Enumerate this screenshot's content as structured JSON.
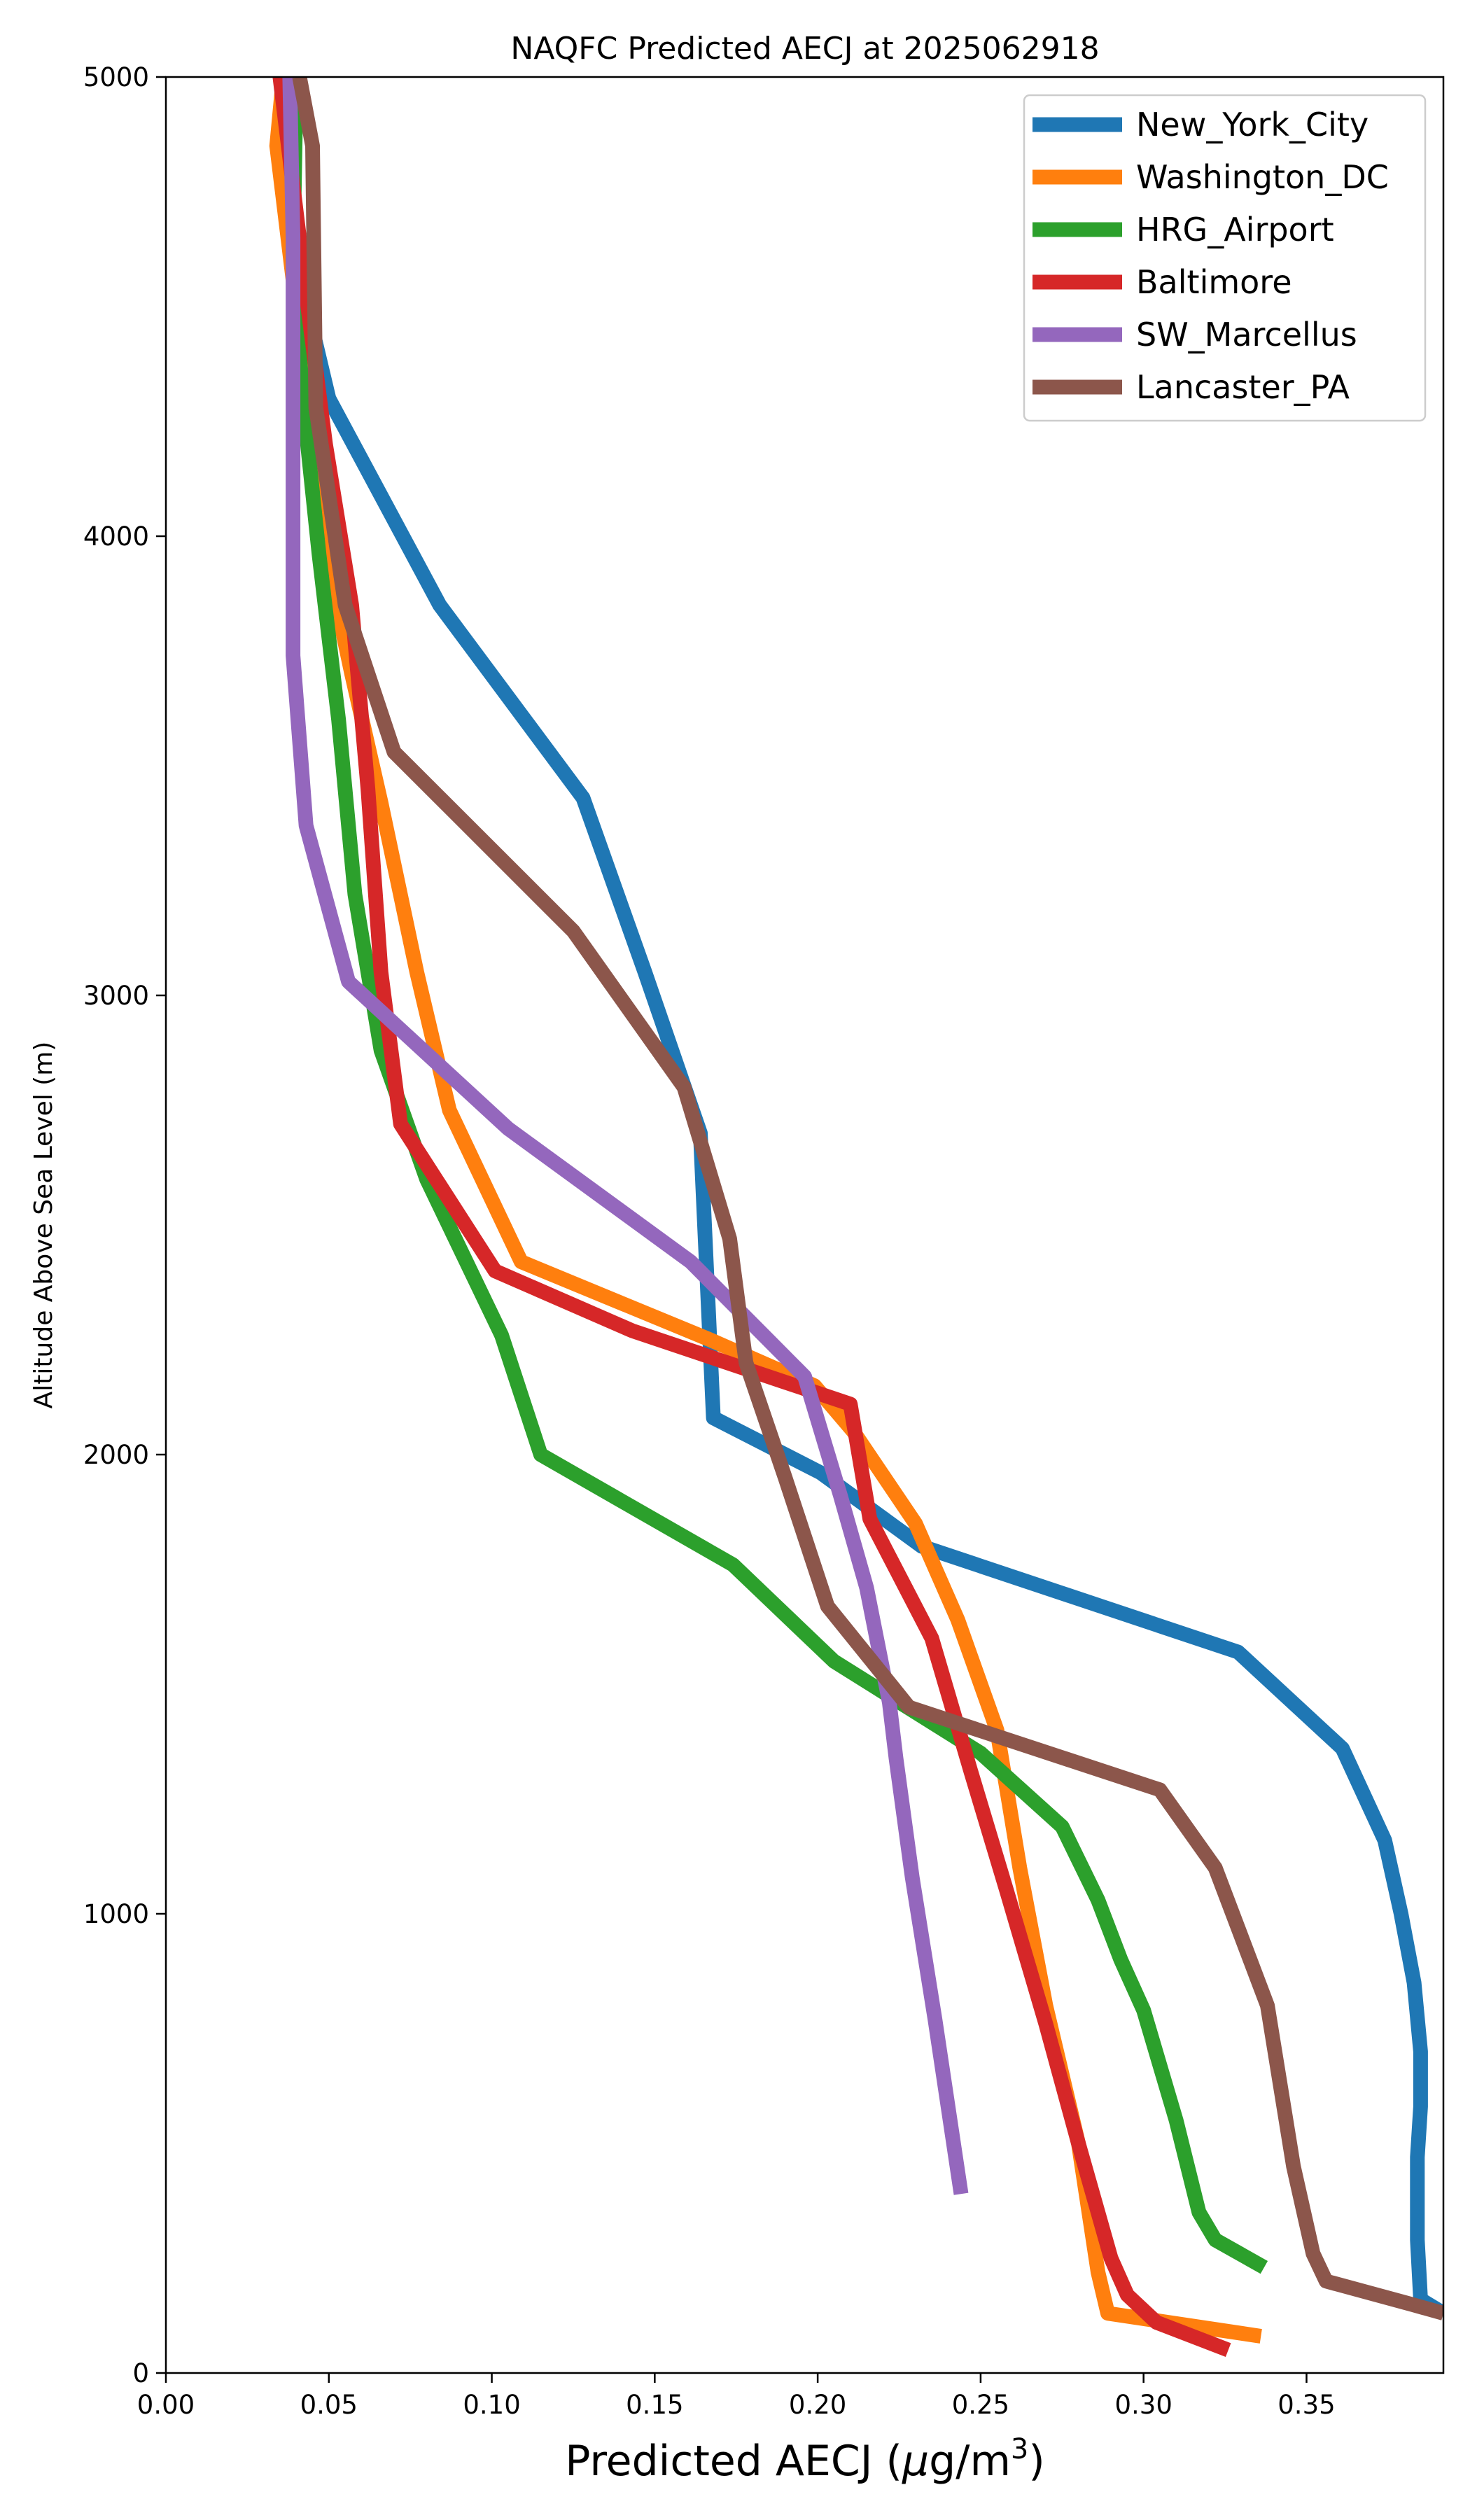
{
  "chart_data": {
    "type": "line",
    "title": "NAQFC Predicted AECJ at 2025062918",
    "xlabel": "Predicted AECJ (μg/m³)",
    "xlabel_parts": {
      "prefix": "Predicted AECJ (",
      "mu": "μ",
      "unit": "g/m",
      "superscript": "3",
      "suffix": ")"
    },
    "ylabel": "Altitude Above Sea Level (m)",
    "xlim": [
      0.0,
      0.392
    ],
    "ylim": [
      0,
      5000
    ],
    "xticks": [
      0.0,
      0.05,
      0.1,
      0.15,
      0.2,
      0.25,
      0.3,
      0.35
    ],
    "xtick_labels": [
      "0.00",
      "0.05",
      "0.10",
      "0.15",
      "0.20",
      "0.25",
      "0.30",
      "0.35"
    ],
    "yticks": [
      0,
      1000,
      2000,
      3000,
      4000,
      5000
    ],
    "ytick_labels": [
      "0",
      "1000",
      "2000",
      "3000",
      "4000",
      "5000"
    ],
    "grid": false,
    "legend_position": "top-right",
    "series": [
      {
        "name": "New_York_City",
        "color": "#1f77b4",
        "points": [
          [
            0.392,
            130
          ],
          [
            0.385,
            160
          ],
          [
            0.384,
            290
          ],
          [
            0.384,
            470
          ],
          [
            0.385,
            580
          ],
          [
            0.385,
            700
          ],
          [
            0.383,
            850
          ],
          [
            0.379,
            1000
          ],
          [
            0.374,
            1160
          ],
          [
            0.361,
            1360
          ],
          [
            0.329,
            1570
          ],
          [
            0.232,
            1800
          ],
          [
            0.201,
            1960
          ],
          [
            0.168,
            2080
          ],
          [
            0.164,
            2700
          ],
          [
            0.147,
            3050
          ],
          [
            0.128,
            3430
          ],
          [
            0.084,
            3850
          ],
          [
            0.05,
            4300
          ],
          [
            0.04,
            4600
          ],
          [
            0.038,
            5000
          ]
        ]
      },
      {
        "name": "Washington_DC",
        "color": "#ff7f0e",
        "points": [
          [
            0.336,
            80
          ],
          [
            0.289,
            130
          ],
          [
            0.286,
            220
          ],
          [
            0.28,
            500
          ],
          [
            0.27,
            800
          ],
          [
            0.262,
            1100
          ],
          [
            0.255,
            1400
          ],
          [
            0.243,
            1640
          ],
          [
            0.23,
            1850
          ],
          [
            0.211,
            2050
          ],
          [
            0.199,
            2150
          ],
          [
            0.167,
            2250
          ],
          [
            0.109,
            2420
          ],
          [
            0.087,
            2750
          ],
          [
            0.077,
            3050
          ],
          [
            0.066,
            3420
          ],
          [
            0.057,
            3700
          ],
          [
            0.048,
            4000
          ],
          [
            0.04,
            4500
          ],
          [
            0.034,
            4850
          ],
          [
            0.036,
            5000
          ]
        ]
      },
      {
        "name": "HRG_Airport",
        "color": "#2ca02c",
        "points": [
          [
            0.337,
            230
          ],
          [
            0.322,
            290
          ],
          [
            0.317,
            350
          ],
          [
            0.31,
            550
          ],
          [
            0.3,
            790
          ],
          [
            0.293,
            900
          ],
          [
            0.286,
            1030
          ],
          [
            0.275,
            1190
          ],
          [
            0.25,
            1350
          ],
          [
            0.205,
            1550
          ],
          [
            0.174,
            1760
          ],
          [
            0.115,
            2000
          ],
          [
            0.103,
            2260
          ],
          [
            0.08,
            2600
          ],
          [
            0.066,
            2880
          ],
          [
            0.058,
            3220
          ],
          [
            0.053,
            3600
          ],
          [
            0.047,
            3960
          ],
          [
            0.042,
            4300
          ],
          [
            0.039,
            4600
          ],
          [
            0.04,
            5000
          ]
        ]
      },
      {
        "name": "Baltimore",
        "color": "#d62728",
        "points": [
          [
            0.326,
            50
          ],
          [
            0.304,
            110
          ],
          [
            0.295,
            170
          ],
          [
            0.29,
            250
          ],
          [
            0.28,
            500
          ],
          [
            0.27,
            760
          ],
          [
            0.258,
            1050
          ],
          [
            0.247,
            1310
          ],
          [
            0.235,
            1600
          ],
          [
            0.216,
            1860
          ],
          [
            0.21,
            2110
          ],
          [
            0.189,
            2160
          ],
          [
            0.143,
            2270
          ],
          [
            0.101,
            2400
          ],
          [
            0.072,
            2720
          ],
          [
            0.066,
            3050
          ],
          [
            0.062,
            3450
          ],
          [
            0.057,
            3850
          ],
          [
            0.049,
            4200
          ],
          [
            0.043,
            4530
          ],
          [
            0.035,
            5000
          ]
        ]
      },
      {
        "name": "SW_Marcellus",
        "color": "#9467bd",
        "points": [
          [
            0.244,
            390
          ],
          [
            0.236,
            770
          ],
          [
            0.229,
            1080
          ],
          [
            0.224,
            1340
          ],
          [
            0.222,
            1460
          ],
          [
            0.215,
            1710
          ],
          [
            0.207,
            1910
          ],
          [
            0.196,
            2170
          ],
          [
            0.161,
            2420
          ],
          [
            0.105,
            2710
          ],
          [
            0.056,
            3030
          ],
          [
            0.043,
            3370
          ],
          [
            0.039,
            3740
          ],
          [
            0.039,
            4200
          ],
          [
            0.039,
            4650
          ],
          [
            0.038,
            5000
          ]
        ]
      },
      {
        "name": "Lancaster_PA",
        "color": "#8c564b",
        "points": [
          [
            0.392,
            130
          ],
          [
            0.382,
            150
          ],
          [
            0.356,
            200
          ],
          [
            0.352,
            260
          ],
          [
            0.346,
            450
          ],
          [
            0.338,
            800
          ],
          [
            0.33,
            950
          ],
          [
            0.322,
            1100
          ],
          [
            0.305,
            1270
          ],
          [
            0.228,
            1450
          ],
          [
            0.203,
            1670
          ],
          [
            0.19,
            1950
          ],
          [
            0.178,
            2200
          ],
          [
            0.173,
            2470
          ],
          [
            0.159,
            2800
          ],
          [
            0.125,
            3140
          ],
          [
            0.07,
            3530
          ],
          [
            0.055,
            3850
          ],
          [
            0.046,
            4280
          ],
          [
            0.045,
            4850
          ],
          [
            0.041,
            5000
          ]
        ]
      }
    ]
  }
}
